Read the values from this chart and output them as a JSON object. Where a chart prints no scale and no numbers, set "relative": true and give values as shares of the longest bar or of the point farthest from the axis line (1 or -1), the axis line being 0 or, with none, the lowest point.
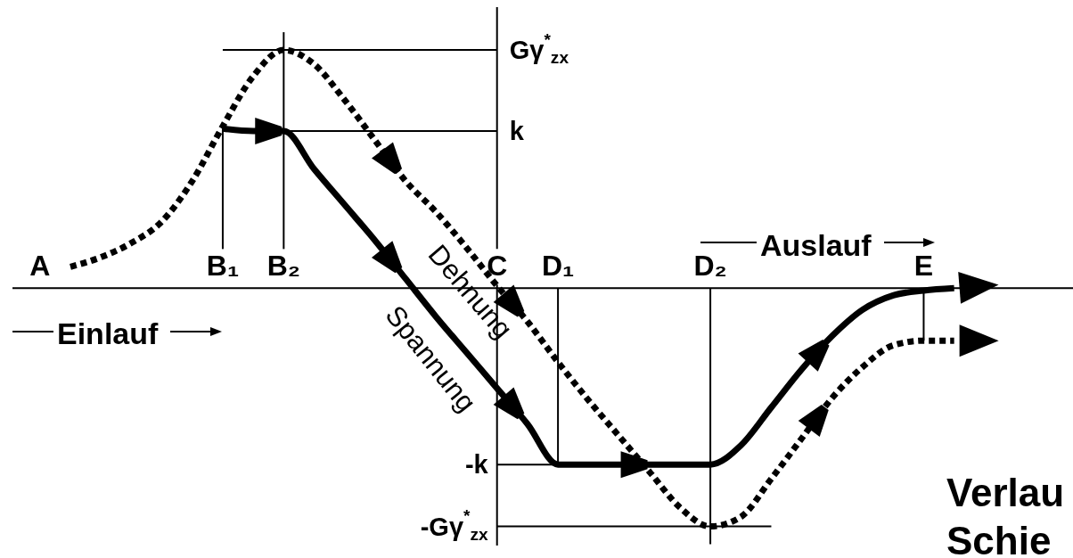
{
  "chart_data": {
    "type": "line",
    "relative": true,
    "categories": [
      "A",
      null,
      null,
      null,
      null,
      null,
      "B₁",
      null,
      "B₂",
      null,
      null,
      null,
      null,
      null,
      null,
      "C",
      null,
      "D₁",
      null,
      null,
      null,
      null,
      "D₂",
      null,
      null,
      null,
      null,
      null,
      null,
      "E",
      null,
      null,
      null
    ],
    "series": [
      {
        "name": "Dehnung",
        "color": "#000000",
        "line_style": "dotted",
        "values": [
          null,
          0.09,
          0.13,
          0.19,
          0.28,
          0.45,
          0.68,
          0.89,
          1,
          0.94,
          0.79,
          0.62,
          0.45,
          0.32,
          0.17,
          0.01,
          -0.14,
          -0.31,
          -0.47,
          -0.62,
          -0.77,
          -0.92,
          -1,
          -0.96,
          -0.8,
          -0.63,
          -0.46,
          -0.33,
          -0.24,
          -0.22,
          -0.22,
          null,
          null
        ]
      },
      {
        "name": "Spannung",
        "color": "#000000",
        "line_style": "solid",
        "values": [
          null,
          null,
          null,
          null,
          null,
          null,
          0.67,
          0.66,
          0.66,
          0.5,
          0.35,
          0.2,
          0.04,
          -0.12,
          -0.27,
          -0.42,
          -0.57,
          -0.74,
          -0.74,
          -0.74,
          -0.74,
          -0.74,
          -0.74,
          -0.66,
          -0.5,
          -0.34,
          -0.2,
          -0.09,
          -0.03,
          -0.01,
          0,
          null,
          null
        ]
      }
    ],
    "ref_lines": [
      {
        "axis": "y",
        "value": 1,
        "label": "Gγ$^{*}$$_{zx}$"
      },
      {
        "axis": "y",
        "value": 0.66,
        "label": "k"
      },
      {
        "axis": "y",
        "value": -0.74,
        "label": "-k"
      },
      {
        "axis": "y",
        "value": -1,
        "label": "-Gγ$^{*}$$_{zx}$"
      },
      {
        "axis": "x",
        "value": "B₁"
      },
      {
        "axis": "x",
        "value": "B₂"
      },
      {
        "axis": "x",
        "value": "C"
      },
      {
        "axis": "x",
        "value": "D₁"
      },
      {
        "axis": "x",
        "value": "D₂"
      },
      {
        "axis": "x",
        "value": "E"
      }
    ],
    "annotations": [
      "Einlauf",
      "Auslauf",
      "Verlau",
      "Schie"
    ]
  }
}
